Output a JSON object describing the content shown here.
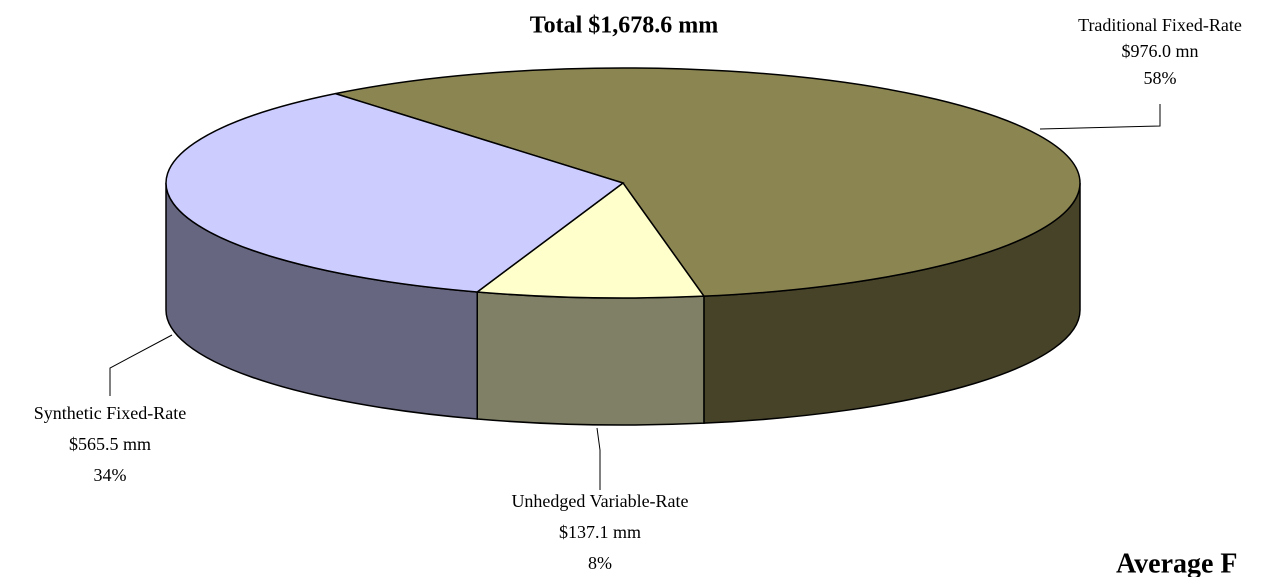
{
  "chart_data": {
    "type": "pie3d",
    "title": "Total $1,678.6 mm",
    "categories": [
      "Traditional Fixed-Rate",
      "Unhedged Variable-Rate",
      "Synthetic Fixed-Rate"
    ],
    "values": [
      58,
      8,
      34
    ],
    "value_labels": [
      "58%",
      "8%",
      "34%"
    ],
    "amount_labels": [
      "$976.0 mn",
      "$137.1 mm",
      "$565.5 mm"
    ],
    "colors": [
      "#8b8552",
      "#ffffcc",
      "#ccccff"
    ],
    "footer_text": "Average F"
  }
}
